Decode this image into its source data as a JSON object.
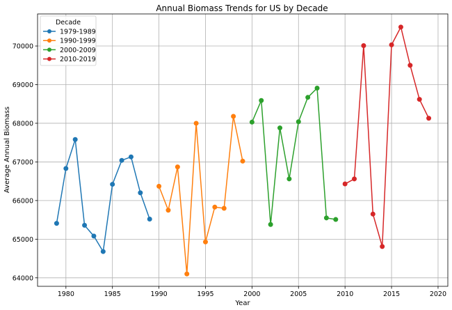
{
  "chart_data": {
    "type": "line",
    "title": "Annual Biomass Trends for US by Decade",
    "xlabel": "Year",
    "ylabel": "Average Annual Biomass",
    "xlim": [
      1976.95,
      2021.05
    ],
    "ylim": [
      63780,
      70830
    ],
    "xticks": [
      1980,
      1985,
      1990,
      1995,
      2000,
      2005,
      2010,
      2015,
      2020
    ],
    "yticks": [
      64000,
      65000,
      66000,
      67000,
      68000,
      69000,
      70000
    ],
    "grid": true,
    "legend": {
      "title": "Decade",
      "placement": "top-left"
    },
    "series": [
      {
        "name": "1979-1989",
        "color": "#1f77b4",
        "x": [
          1979,
          1980,
          1981,
          1982,
          1983,
          1984,
          1985,
          1986,
          1987,
          1988,
          1989
        ],
        "values": [
          65410,
          66830,
          67580,
          65360,
          65080,
          64680,
          66420,
          67040,
          67130,
          66200,
          65520
        ]
      },
      {
        "name": "1990-1999",
        "color": "#ff7f0e",
        "x": [
          1990,
          1991,
          1992,
          1993,
          1994,
          1995,
          1996,
          1997,
          1998,
          1999
        ],
        "values": [
          66370,
          65750,
          66870,
          64100,
          68000,
          64930,
          65830,
          65800,
          68180,
          67020
        ]
      },
      {
        "name": "2000-2009",
        "color": "#2ca02c",
        "x": [
          2000,
          2001,
          2002,
          2003,
          2004,
          2005,
          2006,
          2007,
          2008,
          2009
        ],
        "values": [
          68030,
          68590,
          65380,
          67880,
          66560,
          68040,
          68670,
          68910,
          65550,
          65510
        ]
      },
      {
        "name": "2010-2019",
        "color": "#d62728",
        "x": [
          2010,
          2011,
          2012,
          2013,
          2014,
          2015,
          2016,
          2017,
          2018,
          2019
        ],
        "values": [
          66430,
          66560,
          70010,
          65650,
          64810,
          70030,
          70490,
          69500,
          68620,
          68130
        ]
      }
    ]
  }
}
